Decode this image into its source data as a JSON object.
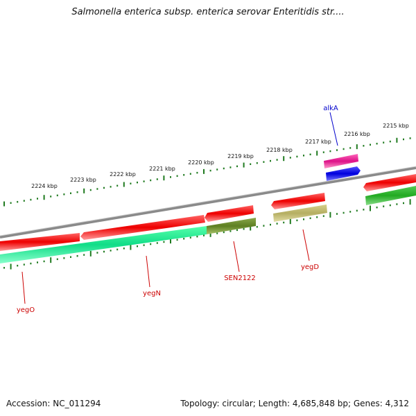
{
  "title": "Salmonella enterica subsp. enterica serovar Enteritidis str....",
  "footer": {
    "accession": "Accession: NC_011294",
    "summary": "Topology: circular; Length: 4,685,848 bp; Genes: 4,312"
  },
  "colors": {
    "backbone": "#808080",
    "tick": "#1f7a1f",
    "forward_gene": "#ee1111",
    "reverse_gene": "#22cc77",
    "reverse_gene_dark": "#22aa22",
    "olive_gene": "#6b8e23",
    "khaki_gene": "#bdb76b",
    "rna_magenta": "#e0208a",
    "blue_feature": "#1010ee",
    "gene_label": "#cc0000",
    "alkA_label": "#0000cc"
  },
  "scale_labels": [
    "2224 kbp",
    "2223 kbp",
    "2222 kbp",
    "2221 kbp",
    "2220 kbp",
    "2219 kbp",
    "2218 kbp",
    "2217 kbp",
    "2216 kbp",
    "2215 kbp"
  ],
  "gene_labels": [
    {
      "name": "yegO",
      "color": "#cc0000"
    },
    {
      "name": "yegN",
      "color": "#cc0000"
    },
    {
      "name": "SEN2122",
      "color": "#cc0000"
    },
    {
      "name": "yegD",
      "color": "#cc0000"
    },
    {
      "name": "alkA",
      "color": "#0000cc"
    }
  ]
}
